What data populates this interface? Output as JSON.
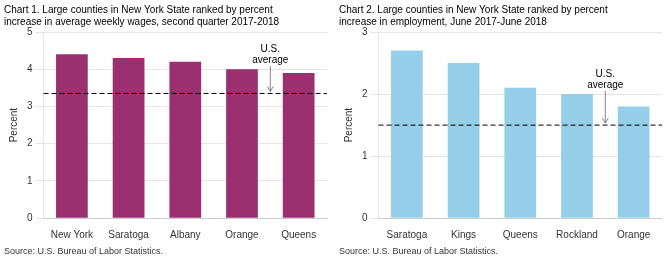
{
  "chart_data": [
    {
      "type": "bar",
      "title": "Chart 1. Large counties in New York State ranked by percent\nincrease in average weekly wages, second quarter 2017-2018",
      "ylabel": "Percent",
      "categories": [
        "New York",
        "Saratoga",
        "Albany",
        "Orange",
        "Queens"
      ],
      "values": [
        4.4,
        4.3,
        4.2,
        4.0,
        3.9
      ],
      "color": "#9B3070",
      "us_average": 3.35,
      "annotations": [
        {
          "text": "U.S.\naverage"
        }
      ],
      "source": "Source: U.S. Bureau of Labor Statistics.",
      "ylim": [
        0,
        5
      ],
      "yticks": [
        0,
        1,
        2,
        3,
        4,
        5
      ],
      "grid": true
    },
    {
      "type": "bar",
      "title": "Chart 2. Large counties in New York State ranked by percent\nincrease in employment, June 2017-June 2018",
      "ylabel": "Percent",
      "categories": [
        "Saratoga",
        "Kings",
        "Queens",
        "Rockland",
        "Orange"
      ],
      "values": [
        2.7,
        2.5,
        2.1,
        2.0,
        1.8
      ],
      "color": "#94CEE8",
      "us_average": 1.5,
      "annotations": [
        {
          "text": "U.S.\naverage"
        }
      ],
      "source": "Source: U.S. Bureau of Labor Statistics.",
      "ylim": [
        0,
        3
      ],
      "yticks": [
        0,
        1,
        2,
        3
      ],
      "grid": true
    }
  ]
}
